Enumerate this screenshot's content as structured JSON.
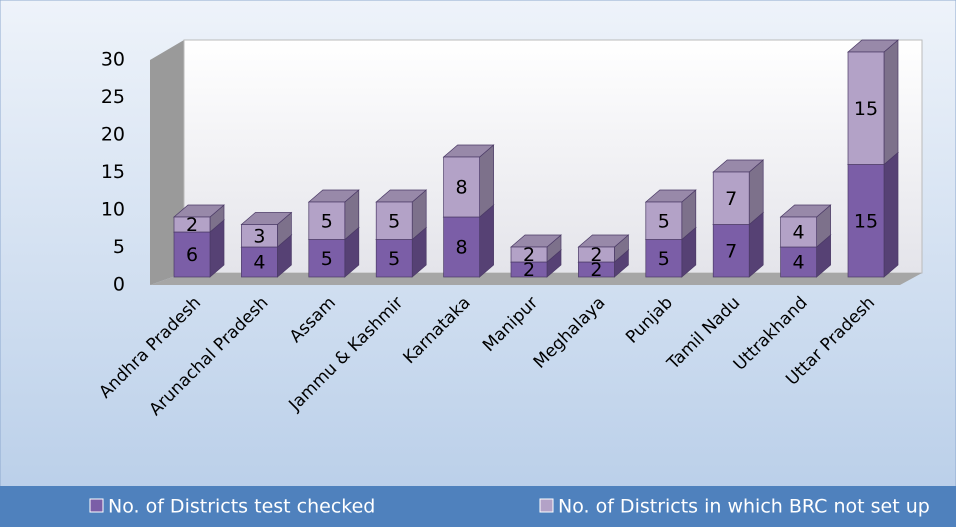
{
  "chart_data": {
    "type": "bar",
    "stacked": true,
    "categories": [
      "Andhra Pradesh",
      "Arunachal Pradesh",
      "Assam",
      "Jammu & Kashmir",
      "Karnataka",
      "Manipur",
      "Meghalaya",
      "Punjab",
      "Tamil Nadu",
      "Uttrakhand",
      "Uttar Pradesh"
    ],
    "series": [
      {
        "name": "No. of Districts test checked",
        "color": "#7b5ea7",
        "values": [
          6,
          4,
          5,
          5,
          8,
          2,
          2,
          5,
          7,
          4,
          15
        ]
      },
      {
        "name": "No. of Districts in which BRC not set up",
        "color": "#b3a2c7",
        "values": [
          2,
          3,
          5,
          5,
          8,
          2,
          2,
          5,
          7,
          4,
          15
        ]
      }
    ],
    "ylim": [
      0,
      30
    ],
    "yticks": [
      0,
      5,
      10,
      15,
      20,
      25,
      30
    ],
    "legend": "bottom"
  }
}
